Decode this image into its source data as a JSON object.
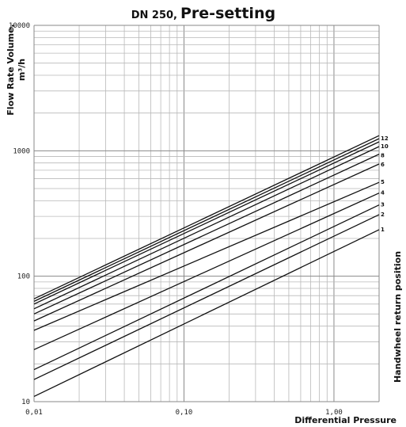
{
  "title": {
    "prefix": "DN 250,",
    "main": "Pre-setting"
  },
  "chart_data": {
    "type": "line",
    "x_scale": "log",
    "y_scale": "log",
    "xlabel": "Differential Pressure",
    "ylabel_line1": "Flow Rate Volume,",
    "ylabel_line2": "m³/h",
    "right_label": "Handwheel return position",
    "xlim": [
      0.01,
      2.0
    ],
    "ylim": [
      10,
      10000
    ],
    "x_ticks": [
      {
        "value": 0.01,
        "label": "0,01"
      },
      {
        "value": 0.1,
        "label": "0,10"
      },
      {
        "value": 1.0,
        "label": "1,00"
      }
    ],
    "y_ticks": [
      {
        "value": 10,
        "label": "10"
      },
      {
        "value": 100,
        "label": "100"
      },
      {
        "value": 1000,
        "label": "1000"
      },
      {
        "value": 10000,
        "label": "10000"
      }
    ],
    "grid": true,
    "series": [
      {
        "name": "1",
        "x": [
          0.01,
          2.0
        ],
        "y": [
          11,
          235
        ]
      },
      {
        "name": "2",
        "x": [
          0.01,
          2.0
        ],
        "y": [
          15,
          310
        ]
      },
      {
        "name": "3",
        "x": [
          0.01,
          2.0
        ],
        "y": [
          18,
          370
        ]
      },
      {
        "name": "4",
        "x": [
          0.01,
          2.0
        ],
        "y": [
          26,
          460
        ]
      },
      {
        "name": "5",
        "x": [
          0.01,
          2.0
        ],
        "y": [
          37,
          560
        ]
      },
      {
        "name": "6",
        "x": [
          0.01,
          2.0
        ],
        "y": [
          44,
          785
        ]
      },
      {
        "name": "8",
        "x": [
          0.01,
          2.0
        ],
        "y": [
          50,
          940
        ]
      },
      {
        "name": "10",
        "x": [
          0.01,
          2.0
        ],
        "y": [
          55,
          1080
        ]
      },
      {
        "name": "12",
        "x": [
          0.01,
          2.0
        ],
        "y": [
          60,
          1180
        ]
      },
      {
        "name": "",
        "x": [
          0.01,
          2.0
        ],
        "y": [
          63,
          1250
        ]
      },
      {
        "name": "",
        "x": [
          0.01,
          2.0
        ],
        "y": [
          66,
          1320
        ]
      }
    ]
  }
}
